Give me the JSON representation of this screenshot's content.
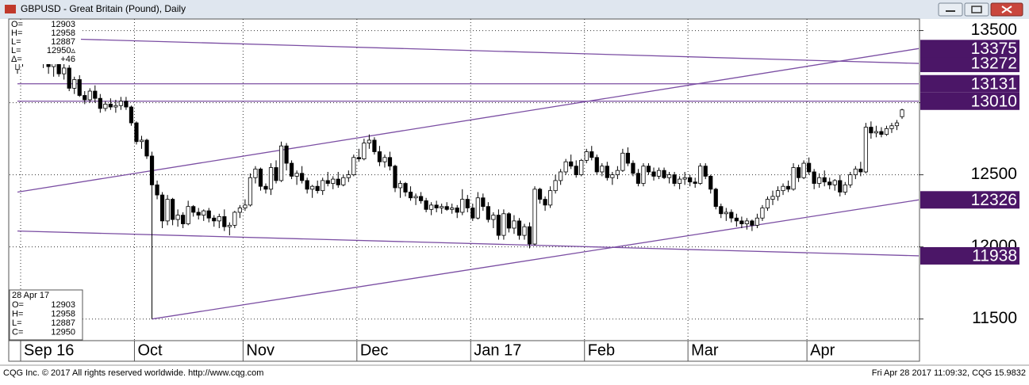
{
  "window": {
    "title": "GBPUSD - Great Britain (Pound), Daily"
  },
  "chart_data": {
    "type": "candlestick",
    "values": [
      [
        13230,
        13290,
        13200,
        13270
      ],
      [
        13270,
        13340,
        13250,
        13310
      ],
      [
        13310,
        13380,
        13290,
        13330
      ],
      [
        13330,
        13440,
        13300,
        13420
      ],
      [
        13420,
        13440,
        13320,
        13340
      ],
      [
        13340,
        13360,
        13240,
        13290
      ],
      [
        13290,
        13320,
        13200,
        13250
      ],
      [
        13250,
        13300,
        13180,
        13270
      ],
      [
        13270,
        13290,
        13180,
        13200
      ],
      [
        13200,
        13280,
        13160,
        13240
      ],
      [
        13240,
        13260,
        13080,
        13100
      ],
      [
        13100,
        13180,
        13060,
        13160
      ],
      [
        13160,
        13190,
        13040,
        13050
      ],
      [
        13050,
        13080,
        12990,
        13020
      ],
      [
        13020,
        13100,
        13000,
        13080
      ],
      [
        13080,
        13120,
        13000,
        13030
      ],
      [
        13030,
        13060,
        12930,
        12960
      ],
      [
        12960,
        13010,
        12940,
        12990
      ],
      [
        12990,
        13030,
        12950,
        12970
      ],
      [
        12970,
        13020,
        12930,
        12980
      ],
      [
        12980,
        13040,
        12950,
        13010
      ],
      [
        13010,
        13040,
        12950,
        12970
      ],
      [
        12970,
        12980,
        12840,
        12860
      ],
      [
        12860,
        12870,
        12710,
        12730
      ],
      [
        12730,
        12770,
        12680,
        12740
      ],
      [
        12740,
        12750,
        12610,
        12630
      ],
      [
        12630,
        12660,
        11500,
        12430
      ],
      [
        12430,
        12460,
        12330,
        12360
      ],
      [
        12360,
        12380,
        12130,
        12180
      ],
      [
        12180,
        12360,
        12150,
        12330
      ],
      [
        12330,
        12340,
        12150,
        12190
      ],
      [
        12190,
        12260,
        12140,
        12220
      ],
      [
        12220,
        12240,
        12130,
        12160
      ],
      [
        12160,
        12320,
        12150,
        12280
      ],
      [
        12280,
        12290,
        12210,
        12240
      ],
      [
        12240,
        12270,
        12190,
        12220
      ],
      [
        12220,
        12260,
        12180,
        12250
      ],
      [
        12250,
        12270,
        12170,
        12200
      ],
      [
        12200,
        12220,
        12140,
        12180
      ],
      [
        12180,
        12230,
        12130,
        12210
      ],
      [
        12210,
        12260,
        12110,
        12140
      ],
      [
        12140,
        12170,
        12080,
        12150
      ],
      [
        12150,
        12250,
        12130,
        12240
      ],
      [
        12240,
        12290,
        12200,
        12270
      ],
      [
        12270,
        12330,
        12250,
        12290
      ],
      [
        12290,
        12510,
        12280,
        12480
      ],
      [
        12480,
        12560,
        12440,
        12540
      ],
      [
        12540,
        12550,
        12390,
        12420
      ],
      [
        12420,
        12440,
        12370,
        12400
      ],
      [
        12400,
        12580,
        12360,
        12550
      ],
      [
        12550,
        12600,
        12440,
        12460
      ],
      [
        12460,
        12730,
        12450,
        12700
      ],
      [
        12700,
        12720,
        12530,
        12580
      ],
      [
        12580,
        12600,
        12470,
        12490
      ],
      [
        12490,
        12530,
        12430,
        12510
      ],
      [
        12510,
        12560,
        12440,
        12460
      ],
      [
        12460,
        12480,
        12370,
        12400
      ],
      [
        12400,
        12430,
        12340,
        12420
      ],
      [
        12420,
        12460,
        12370,
        12390
      ],
      [
        12390,
        12480,
        12360,
        12460
      ],
      [
        12460,
        12520,
        12420,
        12440
      ],
      [
        12440,
        12490,
        12400,
        12470
      ],
      [
        12470,
        12520,
        12410,
        12430
      ],
      [
        12430,
        12500,
        12420,
        12480
      ],
      [
        12480,
        12530,
        12450,
        12500
      ],
      [
        12500,
        12640,
        12490,
        12620
      ],
      [
        12620,
        12680,
        12590,
        12610
      ],
      [
        12610,
        12750,
        12600,
        12720
      ],
      [
        12720,
        12780,
        12680,
        12740
      ],
      [
        12740,
        12760,
        12640,
        12660
      ],
      [
        12660,
        12700,
        12560,
        12590
      ],
      [
        12590,
        12640,
        12550,
        12620
      ],
      [
        12620,
        12660,
        12530,
        12560
      ],
      [
        12560,
        12570,
        12380,
        12410
      ],
      [
        12410,
        12460,
        12340,
        12440
      ],
      [
        12440,
        12450,
        12350,
        12380
      ],
      [
        12380,
        12420,
        12320,
        12340
      ],
      [
        12340,
        12370,
        12290,
        12350
      ],
      [
        12350,
        12380,
        12300,
        12320
      ],
      [
        12320,
        12340,
        12240,
        12260
      ],
      [
        12260,
        12310,
        12220,
        12290
      ],
      [
        12290,
        12320,
        12240,
        12270
      ],
      [
        12270,
        12300,
        12230,
        12280
      ],
      [
        12280,
        12310,
        12250,
        12260
      ],
      [
        12260,
        12300,
        12230,
        12270
      ],
      [
        12270,
        12290,
        12200,
        12240
      ],
      [
        12240,
        12400,
        12220,
        12330
      ],
      [
        12330,
        12360,
        12240,
        12270
      ],
      [
        12270,
        12300,
        12180,
        12200
      ],
      [
        12200,
        12380,
        12190,
        12340
      ],
      [
        12340,
        12370,
        12250,
        12280
      ],
      [
        12280,
        12310,
        12170,
        12190
      ],
      [
        12190,
        12240,
        12130,
        12220
      ],
      [
        12220,
        12260,
        12050,
        12080
      ],
      [
        12080,
        12260,
        12050,
        12230
      ],
      [
        12230,
        12240,
        12100,
        12130
      ],
      [
        12130,
        12220,
        12090,
        12180
      ],
      [
        12180,
        12200,
        12050,
        12080
      ],
      [
        12080,
        12160,
        12050,
        12140
      ],
      [
        12140,
        12170,
        11990,
        12020
      ],
      [
        12020,
        12420,
        12010,
        12400
      ],
      [
        12400,
        12410,
        12300,
        12330
      ],
      [
        12330,
        12350,
        12250,
        12290
      ],
      [
        12290,
        12420,
        12270,
        12390
      ],
      [
        12390,
        12500,
        12370,
        12460
      ],
      [
        12460,
        12540,
        12430,
        12520
      ],
      [
        12520,
        12610,
        12500,
        12590
      ],
      [
        12590,
        12640,
        12540,
        12560
      ],
      [
        12560,
        12600,
        12480,
        12500
      ],
      [
        12500,
        12610,
        12490,
        12600
      ],
      [
        12600,
        12680,
        12580,
        12660
      ],
      [
        12660,
        12700,
        12600,
        12620
      ],
      [
        12620,
        12640,
        12500,
        12520
      ],
      [
        12520,
        12580,
        12490,
        12560
      ],
      [
        12560,
        12590,
        12460,
        12480
      ],
      [
        12480,
        12520,
        12430,
        12500
      ],
      [
        12500,
        12560,
        12470,
        12530
      ],
      [
        12530,
        12680,
        12520,
        12650
      ],
      [
        12650,
        12690,
        12560,
        12580
      ],
      [
        12580,
        12600,
        12490,
        12510
      ],
      [
        12510,
        12540,
        12420,
        12440
      ],
      [
        12440,
        12580,
        12420,
        12560
      ],
      [
        12560,
        12580,
        12500,
        12520
      ],
      [
        12520,
        12550,
        12460,
        12490
      ],
      [
        12490,
        12550,
        12470,
        12530
      ],
      [
        12530,
        12550,
        12470,
        12480
      ],
      [
        12480,
        12520,
        12440,
        12500
      ],
      [
        12500,
        12520,
        12420,
        12440
      ],
      [
        12440,
        12490,
        12400,
        12470
      ],
      [
        12470,
        12520,
        12430,
        12480
      ],
      [
        12480,
        12500,
        12420,
        12450
      ],
      [
        12450,
        12480,
        12410,
        12440
      ],
      [
        12440,
        12580,
        12430,
        12560
      ],
      [
        12560,
        12580,
        12470,
        12490
      ],
      [
        12490,
        12500,
        12370,
        12400
      ],
      [
        12400,
        12410,
        12260,
        12280
      ],
      [
        12280,
        12300,
        12200,
        12230
      ],
      [
        12230,
        12270,
        12180,
        12240
      ],
      [
        12240,
        12260,
        12170,
        12200
      ],
      [
        12200,
        12230,
        12140,
        12180
      ],
      [
        12180,
        12210,
        12130,
        12160
      ],
      [
        12160,
        12200,
        12120,
        12180
      ],
      [
        12180,
        12190,
        12110,
        12150
      ],
      [
        12150,
        12230,
        12130,
        12200
      ],
      [
        12200,
        12290,
        12180,
        12270
      ],
      [
        12270,
        12350,
        12250,
        12330
      ],
      [
        12330,
        12390,
        12290,
        12350
      ],
      [
        12350,
        12420,
        12320,
        12390
      ],
      [
        12390,
        12440,
        12360,
        12420
      ],
      [
        12420,
        12460,
        12380,
        12400
      ],
      [
        12400,
        12580,
        12390,
        12550
      ],
      [
        12550,
        12570,
        12450,
        12480
      ],
      [
        12480,
        12600,
        12470,
        12580
      ],
      [
        12580,
        12620,
        12500,
        12520
      ],
      [
        12520,
        12540,
        12400,
        12440
      ],
      [
        12440,
        12510,
        12410,
        12480
      ],
      [
        12480,
        12530,
        12420,
        12450
      ],
      [
        12450,
        12480,
        12400,
        12430
      ],
      [
        12430,
        12470,
        12390,
        12460
      ],
      [
        12460,
        12500,
        12350,
        12380
      ],
      [
        12380,
        12450,
        12360,
        12430
      ],
      [
        12430,
        12520,
        12410,
        12500
      ],
      [
        12500,
        12560,
        12470,
        12540
      ],
      [
        12540,
        12590,
        12490,
        12520
      ],
      [
        12520,
        12860,
        12510,
        12830
      ],
      [
        12830,
        12870,
        12750,
        12790
      ],
      [
        12790,
        12840,
        12760,
        12800
      ],
      [
        12800,
        12830,
        12760,
        12780
      ],
      [
        12780,
        12840,
        12770,
        12820
      ],
      [
        12820,
        12860,
        12790,
        12840
      ],
      [
        12840,
        12880,
        12810,
        12860
      ],
      [
        12903,
        12958,
        12887,
        12950
      ]
    ],
    "xticks": [
      {
        "value": 0,
        "label": "Sep 16"
      },
      {
        "value": 22,
        "label": "Oct"
      },
      {
        "value": 43,
        "label": "Nov"
      },
      {
        "value": 65,
        "label": "Dec"
      },
      {
        "value": 87,
        "label": "Jan 17"
      },
      {
        "value": 109,
        "label": "Feb"
      },
      {
        "value": 129,
        "label": "Mar"
      },
      {
        "value": 152,
        "label": "Apr"
      }
    ],
    "ylim": [
      11350,
      13580
    ],
    "yticks": [
      11500,
      12000,
      12500,
      13000,
      13500
    ],
    "grid": true,
    "up_color": "#ffffff",
    "down_color": "#000000",
    "line_color": "#7b4ea3",
    "label_color": "#4b1667",
    "lines": [
      {
        "start_index": 12,
        "start": 13440,
        "end": 13272
      },
      {
        "start_index": 0,
        "start": 12380,
        "end": 13375
      },
      {
        "start_index": 26,
        "start": 11500,
        "end": 12326
      },
      {
        "start_index": 0,
        "start": 12110,
        "end": 11938
      },
      {
        "start_index": 0,
        "start": 13131,
        "end": 13131
      },
      {
        "start_index": 0,
        "start": 13010,
        "end": 13010
      }
    ],
    "info_box": [
      [
        "O=",
        "12903"
      ],
      [
        "H=",
        "12958"
      ],
      [
        "L=",
        "12887"
      ],
      [
        "L=",
        "12950▵"
      ],
      [
        "Δ=",
        "+46"
      ]
    ],
    "date_box": {
      "date": "28 Apr 17",
      "rows": [
        [
          "O=",
          "12903"
        ],
        [
          "H=",
          "12958"
        ],
        [
          "L=",
          "12887"
        ],
        [
          "C=",
          "12950"
        ]
      ]
    }
  },
  "footer": {
    "left": "CQG Inc. © 2017 All rights reserved worldwide. http://www.cqg.com",
    "right": "Fri Apr 28 2017 11:09:32, CQG 15.9832"
  }
}
